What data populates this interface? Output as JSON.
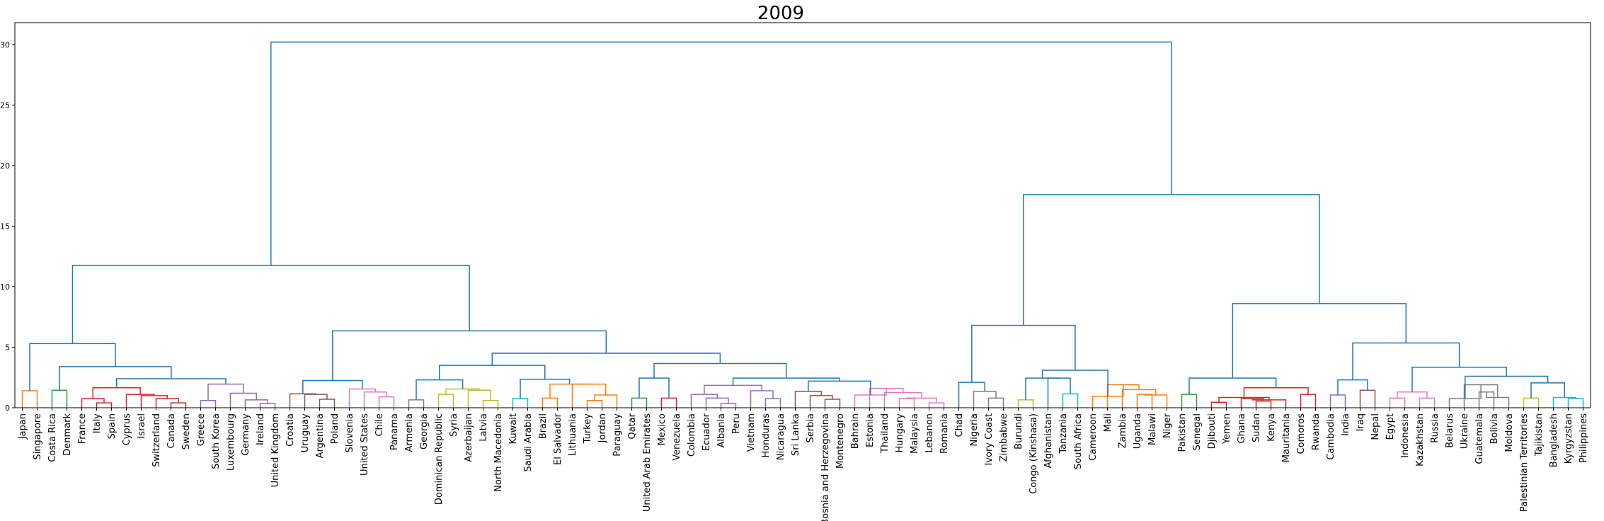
{
  "chart_data": {
    "type": "dendrogram",
    "title": "2009",
    "xlabel": "",
    "ylabel": "",
    "ylim": [
      0,
      31.8
    ],
    "yticks": [
      0,
      5,
      10,
      15,
      20,
      25,
      30
    ],
    "grid": false,
    "leaves": [
      "Japan",
      "Singapore",
      "Costa Rica",
      "Denmark",
      "France",
      "Italy",
      "Spain",
      "Cyprus",
      "Israel",
      "Switzerland",
      "Canada",
      "Sweden",
      "Greece",
      "South Korea",
      "Luxembourg",
      "Germany",
      "Ireland",
      "United Kingdom",
      "Croatia",
      "Uruguay",
      "Argentina",
      "Poland",
      "Slovenia",
      "United States",
      "Chile",
      "Panama",
      "Armenia",
      "Georgia",
      "Dominican Republic",
      "Syria",
      "Azerbaijan",
      "Latvia",
      "North Macedonia",
      "Kuwait",
      "Saudi Arabia",
      "Brazil",
      "El Salvador",
      "Lithuania",
      "Turkey",
      "Jordan",
      "Paraguay",
      "Qatar",
      "United Arab Emirates",
      "Mexico",
      "Venezuela",
      "Colombia",
      "Ecuador",
      "Albania",
      "Peru",
      "Vietnam",
      "Honduras",
      "Nicaragua",
      "Sri Lanka",
      "Serbia",
      "Bosnia and Herzegovina",
      "Montenegro",
      "Bahrain",
      "Estonia",
      "Thailand",
      "Hungary",
      "Malaysia",
      "Lebanon",
      "Romania",
      "Chad",
      "Nigeria",
      "Ivory Coast",
      "Zimbabwe",
      "Burundi",
      "Congo (Kinshasa)",
      "Afghanistan",
      "Tanzania",
      "South Africa",
      "Cameroon",
      "Mali",
      "Zambia",
      "Uganda",
      "Malawi",
      "Niger",
      "Pakistan",
      "Senegal",
      "Djibouti",
      "Yemen",
      "Ghana",
      "Sudan",
      "Kenya",
      "Mauritania",
      "Comoros",
      "Rwanda",
      "Cambodia",
      "India",
      "Iraq",
      "Nepal",
      "Egypt",
      "Indonesia",
      "Kazakhstan",
      "Russia",
      "Belarus",
      "Ukraine",
      "Guatemala",
      "Bolivia",
      "Moldova",
      "Palestinian Territories",
      "Tajikistan",
      "Bangladesh",
      "Kyrgyzstan",
      "Philippines"
    ],
    "links": [
      {
        "a": 0,
        "b": 1,
        "h": 1.4,
        "color": "#ff7f0e"
      },
      {
        "a": 2,
        "b": 3,
        "h": 1.45,
        "color": "#2ca02c"
      },
      {
        "a": 5,
        "b": 6,
        "h": 0.4,
        "color": "#d62728"
      },
      {
        "a": 4,
        "b": "L3",
        "h": 0.75,
        "color": "#d62728"
      },
      {
        "a": 10,
        "b": 11,
        "h": 0.4,
        "color": "#d62728"
      },
      {
        "a": 9,
        "b": "L5",
        "h": 0.75,
        "color": "#d62728"
      },
      {
        "a": 8,
        "b": "L6",
        "h": 1.0,
        "color": "#d62728"
      },
      {
        "a": 7,
        "b": "L7",
        "h": 1.1,
        "color": "#d62728"
      },
      {
        "a": "L4",
        "b": "L8",
        "h": 1.65,
        "color": "#d62728"
      },
      {
        "a": 16,
        "b": 17,
        "h": 0.35,
        "color": "#9467bd"
      },
      {
        "a": 15,
        "b": "L10",
        "h": 0.65,
        "color": "#9467bd"
      },
      {
        "a": 14,
        "b": "L11",
        "h": 1.2,
        "color": "#9467bd"
      },
      {
        "a": 12,
        "b": 13,
        "h": 0.6,
        "color": "#9467bd"
      },
      {
        "a": "L13",
        "b": "L12",
        "h": 1.95,
        "color": "#9467bd"
      },
      {
        "a": "L9",
        "b": "L14",
        "h": 2.4,
        "color": "#1f77b4"
      },
      {
        "a": "L2",
        "b": "L15",
        "h": 3.4,
        "color": "#1f77b4"
      },
      {
        "a": "L1",
        "b": "L16",
        "h": 5.3,
        "color": "#1f77b4"
      },
      {
        "a": 20,
        "b": 21,
        "h": 0.7,
        "color": "#8c564b"
      },
      {
        "a": 19,
        "b": "L18",
        "h": 1.1,
        "color": "#8c564b"
      },
      {
        "a": 18,
        "b": "L19",
        "h": 1.15,
        "color": "#8c564b"
      },
      {
        "a": 24,
        "b": 25,
        "h": 0.9,
        "color": "#e377c2"
      },
      {
        "a": 23,
        "b": "L21",
        "h": 1.3,
        "color": "#e377c2"
      },
      {
        "a": 22,
        "b": "L22",
        "h": 1.55,
        "color": "#e377c2"
      },
      {
        "a": "L20",
        "b": "L23",
        "h": 2.25,
        "color": "#1f77b4"
      },
      {
        "a": 26,
        "b": 27,
        "h": 0.65,
        "color": "#7f7f7f"
      },
      {
        "a": 31,
        "b": 32,
        "h": 0.6,
        "color": "#bcbd22"
      },
      {
        "a": 30,
        "b": "L26",
        "h": 1.45,
        "color": "#bcbd22"
      },
      {
        "a": 28,
        "b": 29,
        "h": 1.1,
        "color": "#bcbd22"
      },
      {
        "a": "L28",
        "b": "L27",
        "h": 1.55,
        "color": "#bcbd22"
      },
      {
        "a": "L25",
        "b": "L29",
        "h": 2.3,
        "color": "#1f77b4"
      },
      {
        "a": 33,
        "b": 34,
        "h": 0.75,
        "color": "#17becf"
      },
      {
        "a": 38,
        "b": 39,
        "h": 0.6,
        "color": "#ff7f0e"
      },
      {
        "a": "L32",
        "b": 40,
        "h": 1.05,
        "color": "#ff7f0e"
      },
      {
        "a": 37,
        "b": "L33",
        "h": 1.95,
        "color": "#ff7f0e"
      },
      {
        "a": 35,
        "b": 36,
        "h": 0.8,
        "color": "#ff7f0e"
      },
      {
        "a": "L35",
        "b": "L34",
        "h": 1.95,
        "color": "#ff7f0e"
      },
      {
        "a": "L31",
        "b": "L36",
        "h": 2.35,
        "color": "#1f77b4"
      },
      {
        "a": "L30",
        "b": "L37",
        "h": 3.5,
        "color": "#1f77b4"
      },
      {
        "a": 41,
        "b": 42,
        "h": 0.8,
        "color": "#2ca02c"
      },
      {
        "a": 43,
        "b": 44,
        "h": 0.8,
        "color": "#d62728"
      },
      {
        "a": "L39",
        "b": "L40",
        "h": 2.45,
        "color": "#1f77b4"
      },
      {
        "a": 47,
        "b": 48,
        "h": 0.35,
        "color": "#9467bd"
      },
      {
        "a": 46,
        "b": "L42",
        "h": 0.8,
        "color": "#9467bd"
      },
      {
        "a": 45,
        "b": "L43",
        "h": 1.1,
        "color": "#9467bd"
      },
      {
        "a": 50,
        "b": 51,
        "h": 0.75,
        "color": "#9467bd"
      },
      {
        "a": 49,
        "b": "L45",
        "h": 1.4,
        "color": "#9467bd"
      },
      {
        "a": "L44",
        "b": "L46",
        "h": 1.85,
        "color": "#9467bd"
      },
      {
        "a": 54,
        "b": 55,
        "h": 0.7,
        "color": "#8c564b"
      },
      {
        "a": 53,
        "b": "L48",
        "h": 1.0,
        "color": "#8c564b"
      },
      {
        "a": 52,
        "b": "L49",
        "h": 1.35,
        "color": "#8c564b"
      },
      {
        "a": 59,
        "b": 60,
        "h": 0.75,
        "color": "#e377c2"
      },
      {
        "a": 61,
        "b": 62,
        "h": 0.4,
        "color": "#e377c2"
      },
      {
        "a": "L51",
        "b": "L52",
        "h": 0.8,
        "color": "#e377c2"
      },
      {
        "a": 58,
        "b": "L53",
        "h": 1.25,
        "color": "#e377c2"
      },
      {
        "a": 57,
        "b": "L54",
        "h": 1.6,
        "color": "#e377c2"
      },
      {
        "a": 56,
        "b": "L55",
        "h": 1.05,
        "color": "#e377c2"
      },
      {
        "a": "L50",
        "b": "L56",
        "h": 2.2,
        "color": "#1f77b4"
      },
      {
        "a": "L47",
        "b": "L57",
        "h": 2.45,
        "color": "#1f77b4"
      },
      {
        "a": "L58",
        "b": "L41",
        "h": 3.65,
        "color": "#1f77b4"
      },
      {
        "a": "L38",
        "b": "L59",
        "h": 4.5,
        "color": "#1f77b4"
      },
      {
        "a": "L24",
        "b": "L60",
        "h": 6.35,
        "color": "#1f77b4"
      },
      {
        "a": "L17",
        "b": "L61",
        "h": 11.75,
        "color": "#1f77b4"
      },
      {
        "a": 65,
        "b": 66,
        "h": 0.8,
        "color": "#7f7f7f"
      },
      {
        "a": 64,
        "b": "L63",
        "h": 1.35,
        "color": "#7f7f7f"
      },
      {
        "a": 63,
        "b": "L64",
        "h": 2.1,
        "color": "#1f77b4"
      },
      {
        "a": 67,
        "b": 68,
        "h": 0.65,
        "color": "#bcbd22"
      },
      {
        "a": 70,
        "b": 71,
        "h": 1.15,
        "color": "#17becf"
      },
      {
        "a": 69,
        "b": "L67",
        "h": 2.45,
        "color": "#1f77b4"
      },
      {
        "a": "L66",
        "b": "L68",
        "h": 2.45,
        "color": "#1f77b4"
      },
      {
        "a": 75,
        "b": 76,
        "h": 1.1,
        "color": "#ff7f0e"
      },
      {
        "a": "L70",
        "b": 77,
        "h": 1.05,
        "color": "#ff7f0e"
      },
      {
        "a": 74,
        "b": "L71",
        "h": 1.5,
        "color": "#ff7f0e"
      },
      {
        "a": 73,
        "b": "L72",
        "h": 1.9,
        "color": "#ff7f0e"
      },
      {
        "a": 72,
        "b": "L73",
        "h": 0.95,
        "color": "#ff7f0e"
      },
      {
        "a": "L74",
        "b": "L69",
        "h": 3.1,
        "color": "#1f77b4"
      },
      {
        "a": "L65",
        "b": "L75",
        "h": 6.8,
        "color": "#1f77b4"
      },
      {
        "a": 78,
        "b": 79,
        "h": 1.1,
        "color": "#2ca02c"
      },
      {
        "a": 83,
        "b": 84,
        "h": 0.55,
        "color": "#d62728"
      },
      {
        "a": 82,
        "b": "L78",
        "h": 0.75,
        "color": "#d62728"
      },
      {
        "a": "L79",
        "b": 85,
        "h": 0.65,
        "color": "#d62728"
      },
      {
        "a": 80,
        "b": 81,
        "h": 0.45,
        "color": "#d62728"
      },
      {
        "a": "L81",
        "b": "L80",
        "h": 0.85,
        "color": "#d62728"
      },
      {
        "a": 86,
        "b": 87,
        "h": 1.1,
        "color": "#d62728"
      },
      {
        "a": "L82",
        "b": "L83",
        "h": 1.65,
        "color": "#d62728"
      },
      {
        "a": "L77",
        "b": "L84",
        "h": 2.45,
        "color": "#1f77b4"
      },
      {
        "a": 88,
        "b": 89,
        "h": 1.05,
        "color": "#9467bd"
      },
      {
        "a": 90,
        "b": 91,
        "h": 1.45,
        "color": "#8c564b"
      },
      {
        "a": "L86",
        "b": "L87",
        "h": 2.3,
        "color": "#1f77b4"
      },
      {
        "a": 94,
        "b": 95,
        "h": 0.8,
        "color": "#e377c2"
      },
      {
        "a": 92,
        "b": 93,
        "h": 0.8,
        "color": "#e377c2"
      },
      {
        "a": "L90",
        "b": "L89",
        "h": 1.3,
        "color": "#e377c2"
      },
      {
        "a": 98,
        "b": 99,
        "h": 1.3,
        "color": "#7f7f7f"
      },
      {
        "a": "L92",
        "b": 100,
        "h": 0.85,
        "color": "#7f7f7f"
      },
      {
        "a": 97,
        "b": "L93",
        "h": 1.9,
        "color": "#7f7f7f"
      },
      {
        "a": 96,
        "b": "L94",
        "h": 0.75,
        "color": "#7f7f7f"
      },
      {
        "a": 104,
        "b": 105,
        "h": 0.75,
        "color": "#17becf"
      },
      {
        "a": 103,
        "b": "L96",
        "h": 0.85,
        "color": "#17becf"
      },
      {
        "a": 101,
        "b": 102,
        "h": 0.8,
        "color": "#bcbd22"
      },
      {
        "a": "L98",
        "b": "L97",
        "h": 2.05,
        "color": "#1f77b4"
      },
      {
        "a": "L95",
        "b": "L99",
        "h": 2.6,
        "color": "#1f77b4"
      },
      {
        "a": "L91",
        "b": "L100",
        "h": 3.35,
        "color": "#1f77b4"
      },
      {
        "a": "L88",
        "b": "L101",
        "h": 5.35,
        "color": "#1f77b4"
      },
      {
        "a": "L85",
        "b": "L102",
        "h": 8.6,
        "color": "#1f77b4"
      },
      {
        "a": "L76",
        "b": "L103",
        "h": 17.6,
        "color": "#1f77b4"
      },
      {
        "a": "L62",
        "b": "L104",
        "h": 30.2,
        "color": "#1f77b4"
      }
    ]
  }
}
